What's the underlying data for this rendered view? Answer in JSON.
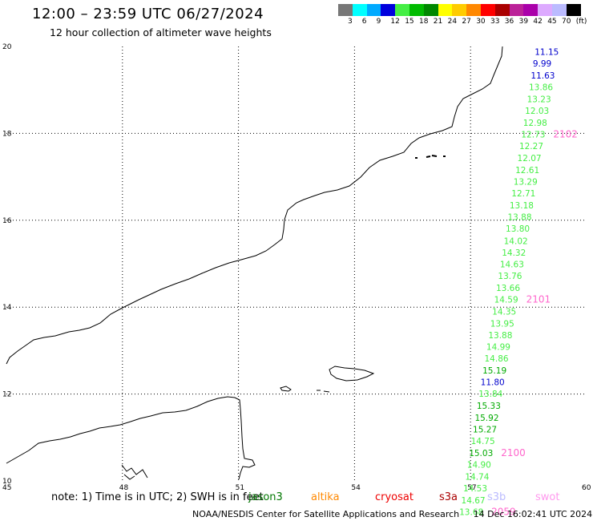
{
  "header": {
    "title": "12:00 – 23:59 UTC 06/27/2024",
    "subtitle": "12 hour collection of altimeter wave heights"
  },
  "colorbar": {
    "colors": [
      "#777777",
      "#00ffff",
      "#00aaff",
      "#0000dd",
      "#44ee44",
      "#00bb00",
      "#008800",
      "#ffff00",
      "#ffcc00",
      "#ff8800",
      "#ff0000",
      "#aa0000",
      "#bb2299",
      "#aa00aa",
      "#ddaaff",
      "#bbbbff",
      "#000000"
    ],
    "labels": [
      "3",
      "6",
      "9",
      "12",
      "15",
      "18",
      "21",
      "24",
      "27",
      "30",
      "33",
      "36",
      "39",
      "42",
      "45",
      "70",
      "(ft)"
    ]
  },
  "map": {
    "lon_range": [
      45,
      60
    ],
    "lat_range": [
      10,
      20
    ],
    "grid": true,
    "x_ticks": [
      "45",
      "48",
      "51",
      "54",
      "57",
      "60"
    ],
    "y_ticks": [
      "10",
      "12",
      "14",
      "16",
      "18",
      "20"
    ]
  },
  "track": {
    "passes": [
      {
        "id": "2102",
        "color": "#ff66cc"
      },
      {
        "id": "2101",
        "color": "#ff66cc"
      },
      {
        "id": "2100",
        "color": "#ff66cc"
      },
      {
        "id": "2059",
        "color": "#ff66cc"
      }
    ],
    "points": [
      {
        "label": "11.15",
        "lon": 58.7,
        "lat": 19.88,
        "color": "#0000cc"
      },
      {
        "label": "9.99",
        "lon": 58.65,
        "lat": 19.61,
        "color": "#0000cc"
      },
      {
        "label": "11.63",
        "lon": 58.6,
        "lat": 19.34,
        "color": "#0000cc"
      },
      {
        "label": "13.86",
        "lon": 58.55,
        "lat": 19.07,
        "color": "#44ee44"
      },
      {
        "label": "13.23",
        "lon": 58.5,
        "lat": 18.79,
        "color": "#44ee44"
      },
      {
        "label": "12.03",
        "lon": 58.45,
        "lat": 18.52,
        "color": "#44ee44"
      },
      {
        "label": "12.98",
        "lon": 58.4,
        "lat": 18.25,
        "color": "#44ee44"
      },
      {
        "label": "12.73",
        "lon": 58.35,
        "lat": 17.98,
        "color": "#44ee44"
      },
      {
        "label": "12.27",
        "lon": 58.3,
        "lat": 17.71,
        "color": "#44ee44"
      },
      {
        "label": "12.07",
        "lon": 58.25,
        "lat": 17.44,
        "color": "#44ee44"
      },
      {
        "label": "12.61",
        "lon": 58.2,
        "lat": 17.16,
        "color": "#44ee44"
      },
      {
        "label": "13.29",
        "lon": 58.15,
        "lat": 16.89,
        "color": "#44ee44"
      },
      {
        "label": "12.71",
        "lon": 58.1,
        "lat": 16.62,
        "color": "#44ee44"
      },
      {
        "label": "13.18",
        "lon": 58.05,
        "lat": 16.35,
        "color": "#44ee44"
      },
      {
        "label": "13.88",
        "lon": 58.0,
        "lat": 16.08,
        "color": "#44ee44"
      },
      {
        "label": "13.80",
        "lon": 57.95,
        "lat": 15.81,
        "color": "#44ee44"
      },
      {
        "label": "14.02",
        "lon": 57.9,
        "lat": 15.53,
        "color": "#44ee44"
      },
      {
        "label": "14.32",
        "lon": 57.85,
        "lat": 15.26,
        "color": "#44ee44"
      },
      {
        "label": "14.63",
        "lon": 57.8,
        "lat": 14.99,
        "color": "#44ee44"
      },
      {
        "label": "13.76",
        "lon": 57.75,
        "lat": 14.72,
        "color": "#44ee44"
      },
      {
        "label": "13.66",
        "lon": 57.7,
        "lat": 14.45,
        "color": "#44ee44"
      },
      {
        "label": "14.59",
        "lon": 57.65,
        "lat": 14.18,
        "color": "#44ee44"
      },
      {
        "label": "14.35",
        "lon": 57.6,
        "lat": 13.9,
        "color": "#44ee44"
      },
      {
        "label": "13.95",
        "lon": 57.55,
        "lat": 13.63,
        "color": "#44ee44"
      },
      {
        "label": "13.88",
        "lon": 57.5,
        "lat": 13.36,
        "color": "#44ee44"
      },
      {
        "label": "14.99",
        "lon": 57.45,
        "lat": 13.09,
        "color": "#44ee44"
      },
      {
        "label": "14.86",
        "lon": 57.4,
        "lat": 12.82,
        "color": "#44ee44"
      },
      {
        "label": "15.19",
        "lon": 57.35,
        "lat": 12.55,
        "color": "#00aa00"
      },
      {
        "label": "11.80",
        "lon": 57.3,
        "lat": 12.28,
        "color": "#0000cc"
      },
      {
        "label": "13.84",
        "lon": 57.25,
        "lat": 12.01,
        "color": "#44ee44"
      },
      {
        "label": "15.33",
        "lon": 57.2,
        "lat": 11.73,
        "color": "#00aa00"
      },
      {
        "label": "15.92",
        "lon": 57.15,
        "lat": 11.46,
        "color": "#00aa00"
      },
      {
        "label": "15.27",
        "lon": 57.1,
        "lat": 11.19,
        "color": "#00aa00"
      },
      {
        "label": "14.75",
        "lon": 57.05,
        "lat": 10.92,
        "color": "#44ee44"
      },
      {
        "label": "15.03",
        "lon": 57.0,
        "lat": 10.65,
        "color": "#00aa00"
      },
      {
        "label": "14.90",
        "lon": 56.95,
        "lat": 10.38,
        "color": "#44ee44"
      },
      {
        "label": "14.74",
        "lon": 56.9,
        "lat": 10.1,
        "color": "#44ee44"
      },
      {
        "label": "14.53",
        "lon": 56.85,
        "lat": 9.83,
        "color": "#44ee44"
      },
      {
        "label": "14.67",
        "lon": 56.8,
        "lat": 9.56,
        "color": "#44ee44"
      },
      {
        "label": "13.68",
        "lon": 56.75,
        "lat": 9.29,
        "color": "#44ee44"
      }
    ]
  },
  "footer": {
    "note": "note: 1) Time is in UTC; 2) SWH is in feet",
    "missions": [
      {
        "name": "jason3",
        "color": "#007700"
      },
      {
        "name": "altika",
        "color": "#ff8800"
      },
      {
        "name": "cryosat",
        "color": "#ee0000"
      },
      {
        "name": "s3a",
        "color": "#aa0000"
      },
      {
        "name": "s3b",
        "color": "#bbbbff"
      },
      {
        "name": "swot",
        "color": "#ff99ee"
      }
    ],
    "credit": "NOAA/NESDIS Center for Satellite Applications and Research",
    "generated": "14 Dec 16:02:41 UTC 2024"
  }
}
